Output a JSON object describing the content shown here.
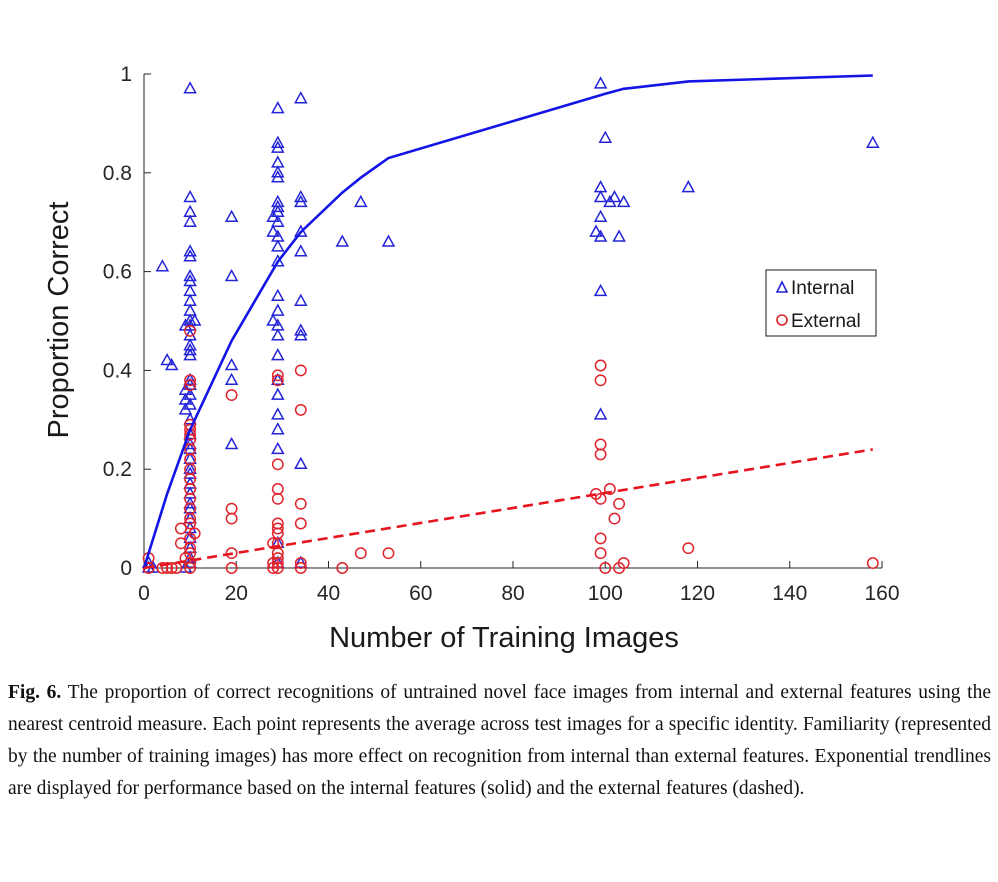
{
  "chart_data": {
    "type": "scatter",
    "xlabel": "Number of Training Images",
    "ylabel": "Proportion Correct",
    "xlim": [
      0,
      160
    ],
    "ylim": [
      0,
      1
    ],
    "xticks": [
      0,
      20,
      40,
      60,
      80,
      100,
      120,
      140,
      160
    ],
    "yticks": [
      0,
      0.2,
      0.4,
      0.6,
      0.8,
      1
    ],
    "ytick_labels": [
      "0",
      "0.2",
      "0.4",
      "0.6",
      "0.8",
      "1"
    ],
    "legend_position": "right",
    "series": [
      {
        "name": "Internal",
        "marker": "triangle",
        "color": "#2323d8",
        "points": [
          [
            1,
            0.01
          ],
          [
            1,
            0.0
          ],
          [
            2,
            0.0
          ],
          [
            4,
            0.61
          ],
          [
            5,
            0.42
          ],
          [
            6,
            0.41
          ],
          [
            9,
            0.36
          ],
          [
            9,
            0.34
          ],
          [
            9,
            0.32
          ],
          [
            9,
            0.49
          ],
          [
            9,
            0.0
          ],
          [
            10,
            0.97
          ],
          [
            10,
            0.75
          ],
          [
            10,
            0.72
          ],
          [
            10,
            0.7
          ],
          [
            10,
            0.64
          ],
          [
            10,
            0.63
          ],
          [
            10,
            0.59
          ],
          [
            10,
            0.58
          ],
          [
            10,
            0.56
          ],
          [
            10,
            0.54
          ],
          [
            10,
            0.52
          ],
          [
            10,
            0.5
          ],
          [
            10,
            0.49
          ],
          [
            10,
            0.47
          ],
          [
            10,
            0.45
          ],
          [
            10,
            0.44
          ],
          [
            10,
            0.43
          ],
          [
            10,
            0.38
          ],
          [
            10,
            0.37
          ],
          [
            10,
            0.35
          ],
          [
            10,
            0.33
          ],
          [
            10,
            0.3
          ],
          [
            10,
            0.27
          ],
          [
            10,
            0.25
          ],
          [
            10,
            0.24
          ],
          [
            10,
            0.22
          ],
          [
            10,
            0.2
          ],
          [
            10,
            0.19
          ],
          [
            10,
            0.17
          ],
          [
            10,
            0.15
          ],
          [
            10,
            0.13
          ],
          [
            10,
            0.12
          ],
          [
            10,
            0.1
          ],
          [
            10,
            0.08
          ],
          [
            10,
            0.06
          ],
          [
            10,
            0.04
          ],
          [
            10,
            0.02
          ],
          [
            10,
            0.01
          ],
          [
            11,
            0.5
          ],
          [
            19,
            0.71
          ],
          [
            19,
            0.59
          ],
          [
            19,
            0.41
          ],
          [
            19,
            0.38
          ],
          [
            19,
            0.25
          ],
          [
            28,
            0.71
          ],
          [
            28,
            0.68
          ],
          [
            28,
            0.5
          ],
          [
            29,
            0.93
          ],
          [
            29,
            0.86
          ],
          [
            29,
            0.85
          ],
          [
            29,
            0.82
          ],
          [
            29,
            0.8
          ],
          [
            29,
            0.79
          ],
          [
            29,
            0.74
          ],
          [
            29,
            0.73
          ],
          [
            29,
            0.72
          ],
          [
            29,
            0.7
          ],
          [
            29,
            0.67
          ],
          [
            29,
            0.65
          ],
          [
            29,
            0.62
          ],
          [
            29,
            0.55
          ],
          [
            29,
            0.52
          ],
          [
            29,
            0.49
          ],
          [
            29,
            0.47
          ],
          [
            29,
            0.43
          ],
          [
            29,
            0.38
          ],
          [
            29,
            0.35
          ],
          [
            29,
            0.31
          ],
          [
            29,
            0.28
          ],
          [
            29,
            0.24
          ],
          [
            29,
            0.05
          ],
          [
            29,
            0.01
          ],
          [
            34,
            0.95
          ],
          [
            34,
            0.75
          ],
          [
            34,
            0.74
          ],
          [
            34,
            0.68
          ],
          [
            34,
            0.64
          ],
          [
            34,
            0.54
          ],
          [
            34,
            0.48
          ],
          [
            34,
            0.47
          ],
          [
            34,
            0.21
          ],
          [
            34,
            0.01
          ],
          [
            43,
            0.66
          ],
          [
            47,
            0.74
          ],
          [
            53,
            0.66
          ],
          [
            98,
            0.68
          ],
          [
            99,
            0.98
          ],
          [
            99,
            0.77
          ],
          [
            99,
            0.75
          ],
          [
            99,
            0.71
          ],
          [
            99,
            0.67
          ],
          [
            99,
            0.56
          ],
          [
            99,
            0.31
          ],
          [
            100,
            0.87
          ],
          [
            101,
            0.74
          ],
          [
            102,
            0.75
          ],
          [
            103,
            0.67
          ],
          [
            104,
            0.74
          ],
          [
            118,
            0.77
          ],
          [
            158,
            0.86
          ]
        ]
      },
      {
        "name": "External",
        "marker": "circle",
        "color": "#e0242c",
        "points": [
          [
            1,
            0.02
          ],
          [
            1,
            0.0
          ],
          [
            4,
            0.0
          ],
          [
            5,
            0.0
          ],
          [
            6,
            0.0
          ],
          [
            7,
            0.0
          ],
          [
            8,
            0.08
          ],
          [
            8,
            0.05
          ],
          [
            9,
            0.02
          ],
          [
            10,
            0.48
          ],
          [
            10,
            0.38
          ],
          [
            10,
            0.37
          ],
          [
            10,
            0.29
          ],
          [
            10,
            0.28
          ],
          [
            10,
            0.27
          ],
          [
            10,
            0.26
          ],
          [
            10,
            0.24
          ],
          [
            10,
            0.22
          ],
          [
            10,
            0.2
          ],
          [
            10,
            0.18
          ],
          [
            10,
            0.16
          ],
          [
            10,
            0.14
          ],
          [
            10,
            0.12
          ],
          [
            10,
            0.1
          ],
          [
            10,
            0.09
          ],
          [
            10,
            0.06
          ],
          [
            10,
            0.04
          ],
          [
            10,
            0.03
          ],
          [
            10,
            0.01
          ],
          [
            10,
            0.0
          ],
          [
            11,
            0.07
          ],
          [
            19,
            0.35
          ],
          [
            19,
            0.12
          ],
          [
            19,
            0.1
          ],
          [
            19,
            0.03
          ],
          [
            19,
            0.0
          ],
          [
            28,
            0.05
          ],
          [
            28,
            0.01
          ],
          [
            28,
            0.0
          ],
          [
            29,
            0.39
          ],
          [
            29,
            0.38
          ],
          [
            29,
            0.21
          ],
          [
            29,
            0.16
          ],
          [
            29,
            0.14
          ],
          [
            29,
            0.09
          ],
          [
            29,
            0.08
          ],
          [
            29,
            0.07
          ],
          [
            29,
            0.05
          ],
          [
            29,
            0.03
          ],
          [
            29,
            0.02
          ],
          [
            29,
            0.01
          ],
          [
            29,
            0.0
          ],
          [
            34,
            0.4
          ],
          [
            34,
            0.32
          ],
          [
            34,
            0.13
          ],
          [
            34,
            0.09
          ],
          [
            34,
            0.01
          ],
          [
            34,
            0.0
          ],
          [
            43,
            0.0
          ],
          [
            47,
            0.03
          ],
          [
            53,
            0.03
          ],
          [
            98,
            0.15
          ],
          [
            99,
            0.41
          ],
          [
            99,
            0.38
          ],
          [
            99,
            0.25
          ],
          [
            99,
            0.23
          ],
          [
            99,
            0.14
          ],
          [
            99,
            0.06
          ],
          [
            99,
            0.03
          ],
          [
            100,
            0.0
          ],
          [
            101,
            0.16
          ],
          [
            102,
            0.1
          ],
          [
            103,
            0.13
          ],
          [
            103,
            0.0
          ],
          [
            104,
            0.01
          ],
          [
            118,
            0.04
          ],
          [
            158,
            0.01
          ]
        ]
      }
    ],
    "trendlines": [
      {
        "series": "Internal",
        "style": "solid",
        "color": "#1414e6",
        "points": [
          [
            0,
            0.0
          ],
          [
            1,
            0.03
          ],
          [
            5,
            0.15
          ],
          [
            10,
            0.28
          ],
          [
            19,
            0.46
          ],
          [
            29,
            0.62
          ],
          [
            34,
            0.68
          ],
          [
            43,
            0.76
          ],
          [
            47,
            0.79
          ],
          [
            53,
            0.83
          ],
          [
            100,
            0.96
          ],
          [
            104,
            0.97
          ],
          [
            118,
            0.985
          ],
          [
            158,
            0.997
          ]
        ]
      },
      {
        "series": "External",
        "style": "dashed",
        "color": "#e6141e",
        "points": [
          [
            0,
            0.0
          ],
          [
            158,
            0.24
          ]
        ]
      }
    ]
  },
  "caption": {
    "label": "Fig. 6.",
    "text": "The proportion of correct recognitions of untrained novel face images from internal and external features using the nearest centroid measure. Each point represents the average across test images for a specific identity. Familiarity (represented by the number of training images) has more effect on recognition from internal than external features. Exponential trendlines are displayed for performance based on the internal features (solid) and the external features (dashed)."
  }
}
